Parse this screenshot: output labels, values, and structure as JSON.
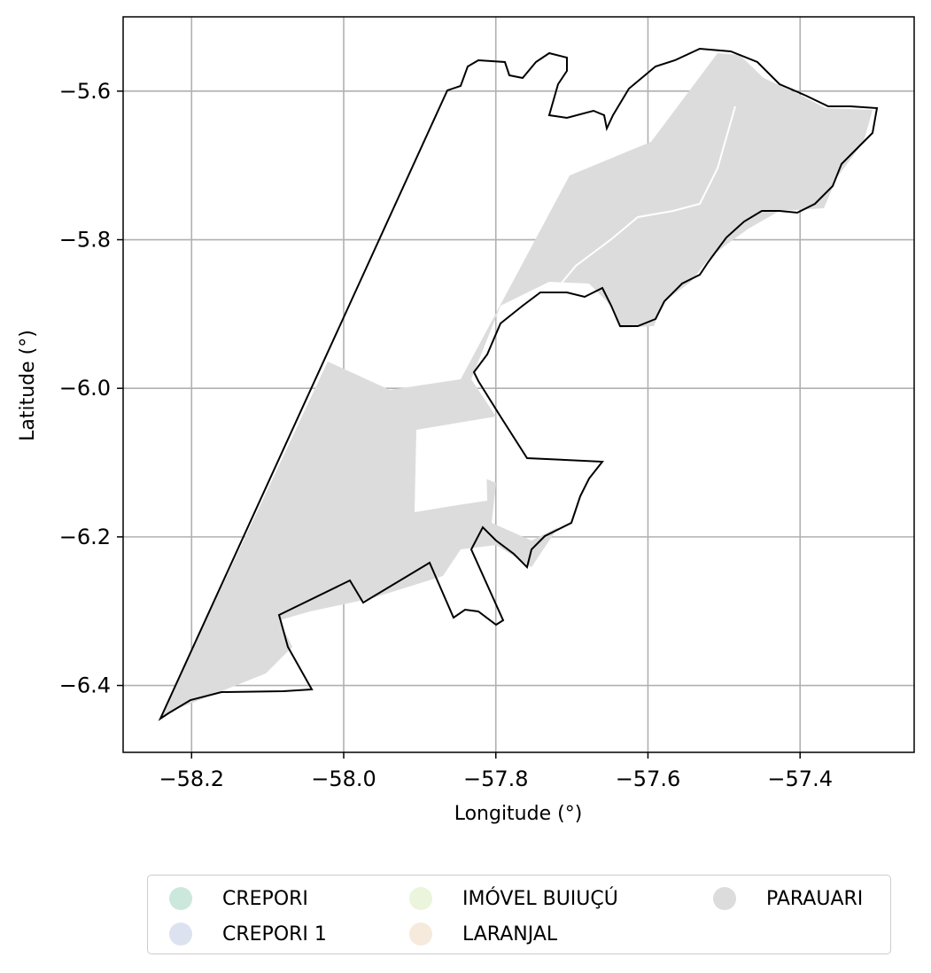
{
  "map": {
    "xlabel": "Longitude (°)",
    "ylabel": "Latitude (°)",
    "xlim": [
      -58.29,
      -57.25
    ],
    "ylim": [
      -6.49,
      -5.5
    ],
    "grid": true,
    "x_ticks": [
      {
        "value": -58.2,
        "label": "−58.2"
      },
      {
        "value": -58.0,
        "label": "−58.0"
      },
      {
        "value": -57.8,
        "label": "−57.8"
      },
      {
        "value": -57.6,
        "label": "−57.6"
      },
      {
        "value": -57.4,
        "label": "−57.4"
      }
    ],
    "y_ticks": [
      {
        "value": -5.6,
        "label": "−5.6"
      },
      {
        "value": -5.8,
        "label": "−5.8"
      },
      {
        "value": -6.0,
        "label": "−6.0"
      },
      {
        "value": -6.2,
        "label": "−6.2"
      },
      {
        "value": -6.4,
        "label": "−6.4"
      }
    ],
    "fill_color": "#dcdcdc",
    "boundary_color": "#000000"
  },
  "legend": {
    "placement": "bottom-center",
    "items": [
      {
        "label": "CREPORI",
        "color": "#cce8dc"
      },
      {
        "label": "CREPORI 1",
        "color": "#dde2f0"
      },
      {
        "label": "IMÓVEL BUIUÇÚ",
        "color": "#eaf5db"
      },
      {
        "label": "LARANJAL",
        "color": "#f6eadc"
      },
      {
        "label": "PARAUARI",
        "color": "#dcdcdc"
      }
    ]
  }
}
